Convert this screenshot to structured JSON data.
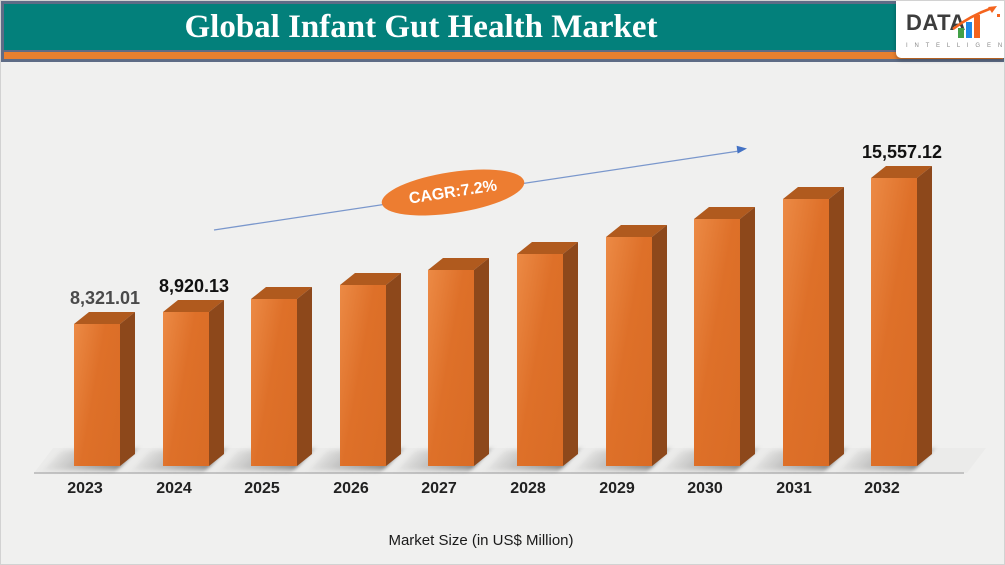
{
  "header": {
    "title": "Global Infant Gut Health Market"
  },
  "logo": {
    "name": "DATA",
    "sub": "I N T E L L I G E N C E"
  },
  "chart_data": {
    "type": "bar",
    "title": "Global Infant Gut Health Market",
    "xlabel": "Market Size (in US$ Million)",
    "ylabel": "",
    "categories": [
      "2023",
      "2024",
      "2025",
      "2026",
      "2027",
      "2028",
      "2029",
      "2030",
      "2031",
      "2032"
    ],
    "values": [
      8321.01,
      8920.13,
      9562.38,
      10250.87,
      10988.93,
      11780.13,
      12628.3,
      13537.54,
      14512.24,
      15557.12
    ],
    "value_labels": [
      {
        "index": 0,
        "text": "8,321.01",
        "color": "#4a4a4a"
      },
      {
        "index": 1,
        "text": "8,920.13",
        "color": "#111111"
      },
      {
        "index": 9,
        "text": "15,557.12",
        "color": "#111111"
      }
    ],
    "cagr_label": "CAGR:7.2%",
    "legend": [],
    "grid": false,
    "colors": {
      "barFront": "#de7029",
      "barFrontLight": "#ec8a45",
      "barFrontDark": "#d96c25",
      "barTop": "#b05a1e",
      "barSide": "#8d481b",
      "arrowBlue": "#4472c4",
      "arrowLine": "#7a97cc",
      "ellipse": "#ed7d31",
      "teal": "#03807b",
      "strip": "#e8802f",
      "slate": "#5e6c86",
      "logoGreen": "#43a047",
      "logoBlue": "#1e88e5",
      "logoOrange": "#f4641e"
    }
  }
}
